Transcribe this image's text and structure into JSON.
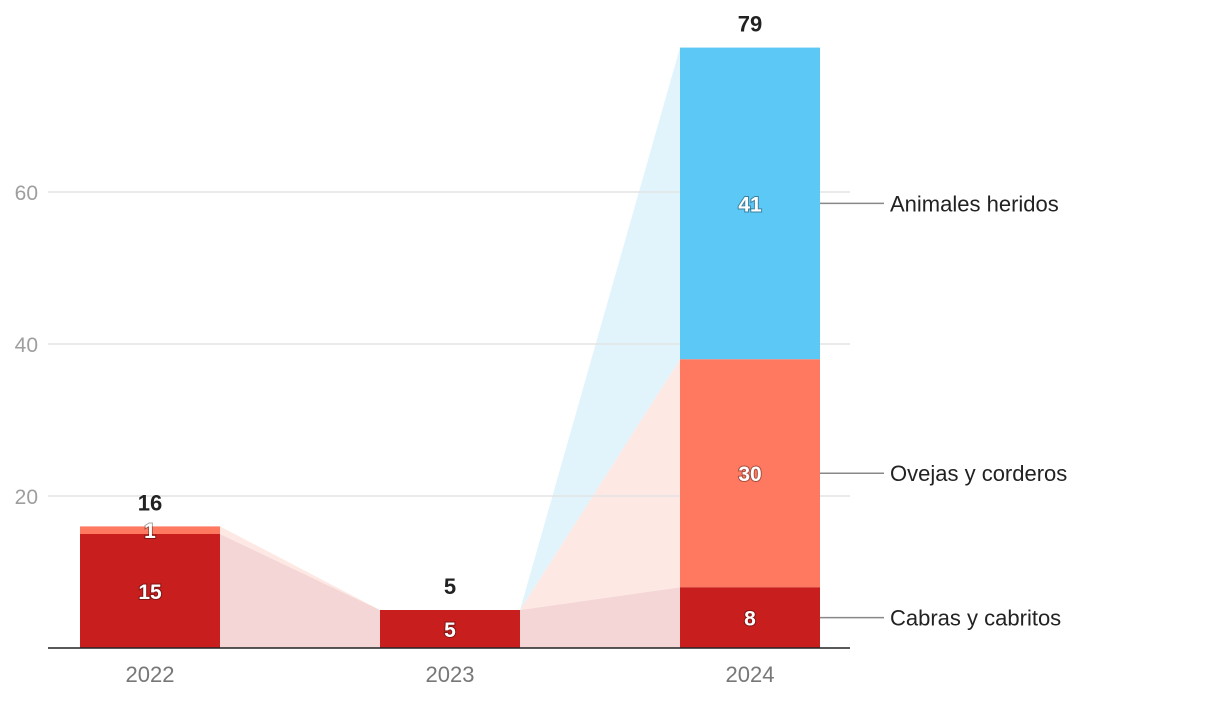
{
  "chart_data": {
    "type": "bar",
    "stacked": true,
    "categories": [
      "2022",
      "2023",
      "2024"
    ],
    "series": [
      {
        "name": "Cabras y cabritos",
        "values": [
          15,
          5,
          8
        ],
        "color": "#c81e1e",
        "band_color": "#f5d6d6"
      },
      {
        "name": "Ovejas y corderos",
        "values": [
          1,
          0,
          30
        ],
        "color": "#ff7961",
        "band_color": "#fde8e4"
      },
      {
        "name": "Animales heridos",
        "values": [
          0,
          0,
          41
        ],
        "color": "#5bc8f5",
        "band_color": "#e1f4fc"
      }
    ],
    "totals": [
      16,
      5,
      79
    ],
    "yticks": [
      20,
      40,
      60
    ],
    "ylim": [
      0,
      79
    ],
    "grid": true,
    "legend": "right, inline labels",
    "title": "",
    "xlabel": "",
    "ylabel": ""
  }
}
